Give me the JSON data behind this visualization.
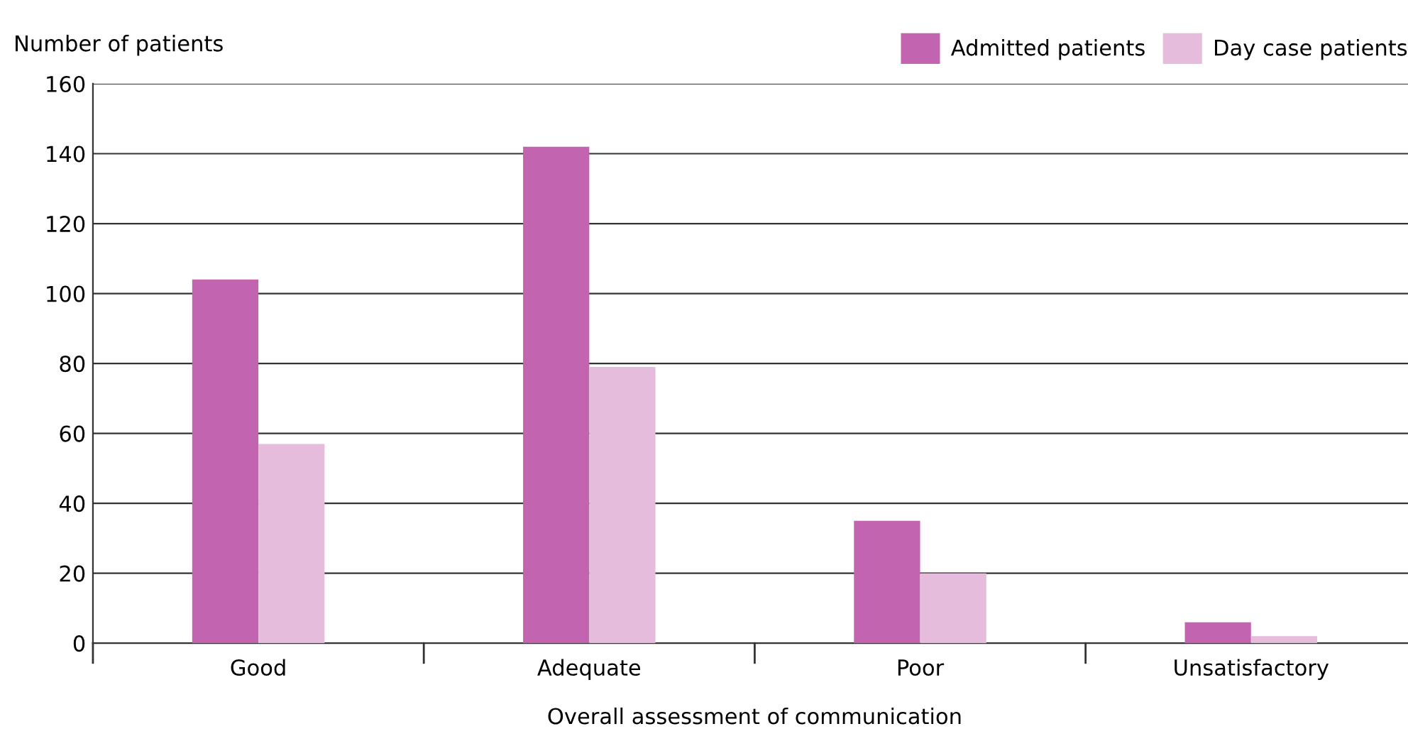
{
  "chart_data": {
    "type": "bar",
    "xlabel": "Overall assessment of communication",
    "ylabel": "Number of patients",
    "categories": [
      "Good",
      "Adequate",
      "Poor",
      "Unsatisfactory"
    ],
    "series": [
      {
        "name": "Admitted patients",
        "color": "#c264b0",
        "values": [
          104,
          142,
          35,
          6
        ]
      },
      {
        "name": "Day case patients",
        "color": "#e6bcdd",
        "values": [
          57,
          79,
          20,
          2
        ]
      }
    ],
    "ylim": [
      0,
      160
    ],
    "yticks": [
      0,
      20,
      40,
      60,
      80,
      100,
      120,
      140,
      160
    ],
    "grid": "y",
    "legend": "top right"
  }
}
